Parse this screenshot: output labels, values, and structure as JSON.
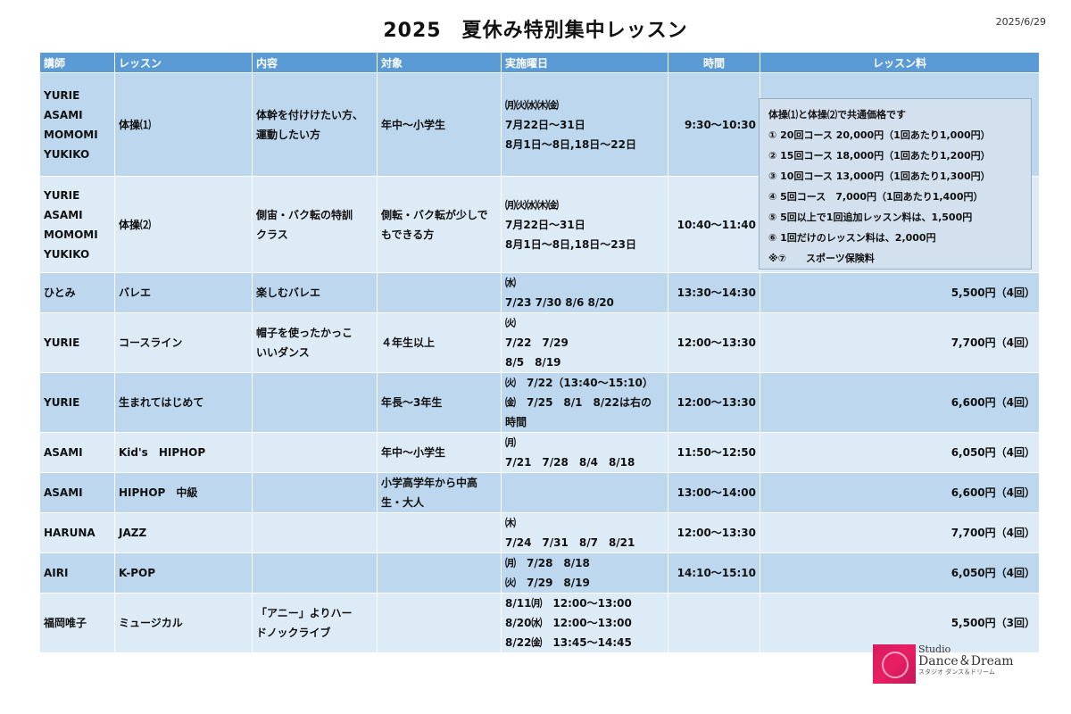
{
  "title": "2025　夏休み特別集中レッスン",
  "date": "2025/6/29",
  "columns": [
    "講師",
    "レッスン",
    "内容",
    "対象",
    "実施曜日",
    "時間",
    "レッスン料"
  ],
  "rows": [
    {
      "teacher": [
        "YURIE",
        "ASAMI",
        "MOMOMI",
        "YUKIKO"
      ],
      "lesson": "体操⑴",
      "content": [
        "体幹を付けけたい方、",
        "運動したい方"
      ],
      "target": [
        "年中～小学生"
      ],
      "days": [
        "㈪㈫㈬㈭㈮",
        "7月22日～31日",
        "8月1日～8日,18日～22日"
      ],
      "time": "9:30～10:30",
      "fee": ""
    },
    {
      "teacher": [
        "YURIE",
        "ASAMI",
        "MOMOMI",
        "YUKIKO"
      ],
      "lesson": "体操⑵",
      "content": [
        "側宙・バク転の特訓",
        "クラス"
      ],
      "target": [
        "側転・バク転が少しで",
        "もできる方"
      ],
      "days": [
        "㈪㈫㈬㈭㈮",
        "7月22日～31日",
        "8月1日～8日,18日～23日"
      ],
      "time": "10:40～11:40",
      "fee": ""
    },
    {
      "teacher": [
        "ひとみ"
      ],
      "lesson": "バレエ",
      "content": [
        "楽しむバレエ"
      ],
      "target": [
        ""
      ],
      "days": [
        "㈬",
        "7/23 7/30 8/6 8/20"
      ],
      "time": "13:30～14:30",
      "fee": "5,500円（4回）"
    },
    {
      "teacher": [
        "YURIE"
      ],
      "lesson": "コースライン",
      "content": [
        "帽子を使ったかっこ",
        "いいダンス"
      ],
      "target": [
        "４年生以上"
      ],
      "days": [
        "㈫",
        "7/22　7/29",
        "8/5　8/19"
      ],
      "time": "12:00～13:30",
      "fee": "7,700円（4回）"
    },
    {
      "teacher": [
        "YURIE"
      ],
      "lesson": "生まれてはじめて",
      "content": [
        ""
      ],
      "target": [
        "年長～3年生"
      ],
      "days": [
        "㈫　7/22（13:40～15:10）",
        "㈮　7/25　8/1　8/22は右の",
        "時間"
      ],
      "time": "12:00～13:30",
      "fee": "6,600円（4回）"
    },
    {
      "teacher": [
        "ASAMI"
      ],
      "lesson": "Kid's　HIPHOP",
      "content": [
        ""
      ],
      "target": [
        "年中～小学生"
      ],
      "days": [
        "㈪",
        "7/21　7/28　8/4　8/18"
      ],
      "time": "11:50～12:50",
      "fee": "6,050円（4回）"
    },
    {
      "teacher": [
        "ASAMI"
      ],
      "lesson": "HIPHOP　中級",
      "content": [
        ""
      ],
      "target": [
        "小学高学年から中高",
        "生・大人"
      ],
      "days": [
        ""
      ],
      "time": "13:00～14:00",
      "fee": "6,600円（4回）"
    },
    {
      "teacher": [
        "HARUNA"
      ],
      "lesson": "JAZZ",
      "content": [
        ""
      ],
      "target": [
        ""
      ],
      "days": [
        "㈭",
        "7/24　7/31　8/7　8/21"
      ],
      "time": "12:00～13:30",
      "fee": "7,700円（4回）"
    },
    {
      "teacher": [
        "AIRI"
      ],
      "lesson": "K-POP",
      "content": [
        ""
      ],
      "target": [
        ""
      ],
      "days": [
        "㈪　7/28　8/18",
        "㈫　7/29　8/19"
      ],
      "time": "14:10～15:10",
      "fee": "6,050円（4回）"
    },
    {
      "teacher": [
        "福岡唯子"
      ],
      "lesson": "ミュージカル",
      "content": [
        "「アニー」よりハー",
        "ドノックライブ"
      ],
      "target": [
        ""
      ],
      "days": [
        "8/11㈪　12:00～13:00",
        "8/20㈬　12:00～13:00",
        "8/22㈮　13:45～14:45"
      ],
      "time": "",
      "fee": "5,500円（3回）"
    }
  ],
  "fee_box": [
    "体操⑴と体操⑵で共通価格です",
    "①  20回コース 20,000円（1回あたり1,000円）",
    "②  15回コース 18,000円（1回あたり1,200円）",
    "③  10回コース 13,000円（1回あたり1,300円）",
    "④  5回コース　7,000円（1回あたり1,400円）",
    "⑤  5回以上で1回追加レッスン料は、1,500円",
    "⑥  1回だけのレッスン料は、2,000円",
    "※⑦　　スポーツ保険料"
  ],
  "logo": {
    "line1": "Studio",
    "line2": "Dance＆Dream",
    "line3": "スタジオ ダンス＆ドリーム"
  },
  "colors": {
    "header": "#5b9bd5",
    "row_odd": "#bdd7ee",
    "row_even": "#ddebf7"
  }
}
